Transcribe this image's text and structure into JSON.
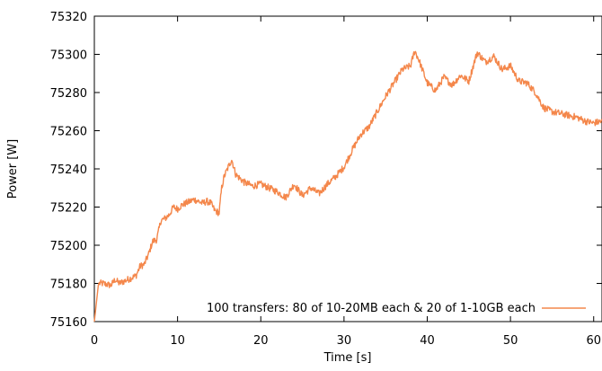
{
  "chart_data": {
    "type": "line",
    "xlabel": "Time [s]",
    "ylabel": "Power [W]",
    "xlim": [
      0,
      61
    ],
    "ylim": [
      75160,
      75320
    ],
    "x_ticks": [
      0,
      10,
      20,
      30,
      40,
      50,
      60
    ],
    "x_tick_labels": [
      "0",
      "10",
      "20",
      "30",
      "40",
      "50",
      "60"
    ],
    "y_ticks": [
      75160,
      75180,
      75200,
      75220,
      75240,
      75260,
      75280,
      75300,
      75320
    ],
    "y_tick_labels": [
      "75160",
      "75180",
      "75200",
      "75220",
      "75240",
      "75260",
      "75280",
      "75300",
      "75320"
    ],
    "grid": false,
    "legend_position": "bottom-right",
    "series": [
      {
        "name": "100 transfers: 80 of 10-20MB each & 20 of 1-10GB each",
        "color": "#f4874b",
        "x": [
          0,
          0.3,
          0.5,
          1,
          2,
          2.5,
          3,
          4,
          5,
          5.5,
          6,
          6.5,
          7,
          7.5,
          8,
          8.5,
          9,
          9.5,
          10,
          10.5,
          11,
          11.5,
          12,
          12.5,
          13,
          13.5,
          14,
          14.5,
          15,
          15.3,
          15.6,
          16,
          16.5,
          17,
          17.5,
          18,
          19,
          20,
          21,
          22,
          23,
          24,
          25,
          26,
          27,
          28,
          29,
          30,
          31,
          32,
          33,
          34,
          35,
          36,
          37,
          38,
          38.5,
          39,
          40,
          41,
          42,
          43,
          44,
          45,
          46,
          47,
          48,
          49,
          50,
          51,
          52,
          53,
          54,
          55,
          56,
          57,
          58,
          59,
          60,
          61
        ],
        "y": [
          75160,
          75172,
          75180,
          75180,
          75179,
          75182,
          75180,
          75182,
          75184,
          75189,
          75190,
          75195,
          75202,
          75203,
          75213,
          75214,
          75216,
          75220,
          75219,
          75221,
          75222,
          75223,
          75224,
          75223,
          75222,
          75223,
          75222,
          75218,
          75217,
          75230,
          75236,
          75240,
          75245,
          75237,
          75235,
          75233,
          75231,
          75232,
          75230,
          75228,
          75225,
          75232,
          75226,
          75230,
          75227,
          75232,
          75236,
          75241,
          75250,
          75258,
          75262,
          75270,
          75278,
          75285,
          75292,
          75294,
          75302,
          75297,
          75285,
          75281,
          75288,
          75284,
          75289,
          75286,
          75301,
          75296,
          75299,
          75292,
          75294,
          75286,
          75285,
          75280,
          75272,
          75270,
          75269,
          75268,
          75267,
          75265,
          75264,
          75265
        ]
      }
    ]
  }
}
